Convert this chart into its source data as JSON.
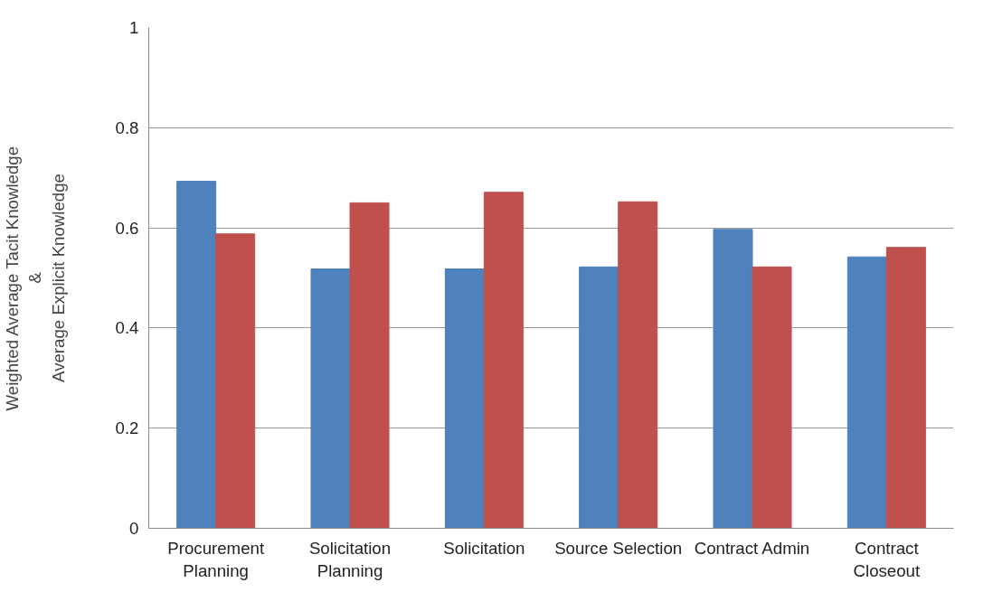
{
  "chart_data": {
    "type": "bar",
    "ylabel": "Weighted Average Tacit Knowledge\n&\nAverage Explicit Knowledge",
    "categories": [
      "Procurement\nPlanning",
      "Solicitation\nPlanning",
      "Solicitation",
      "Source Selection",
      "Contract Admin",
      "Contract\nCloseout"
    ],
    "series": [
      {
        "color": "#4f81bd",
        "values": [
          0.693,
          0.518,
          0.518,
          0.522,
          0.597,
          0.542
        ]
      },
      {
        "color": "#c0504d",
        "values": [
          0.588,
          0.65,
          0.671,
          0.652,
          0.522,
          0.561
        ]
      }
    ],
    "ylim": [
      0,
      1
    ],
    "yticks": [
      0,
      0.2,
      0.4,
      0.6,
      0.8,
      1
    ],
    "grid": "y"
  }
}
